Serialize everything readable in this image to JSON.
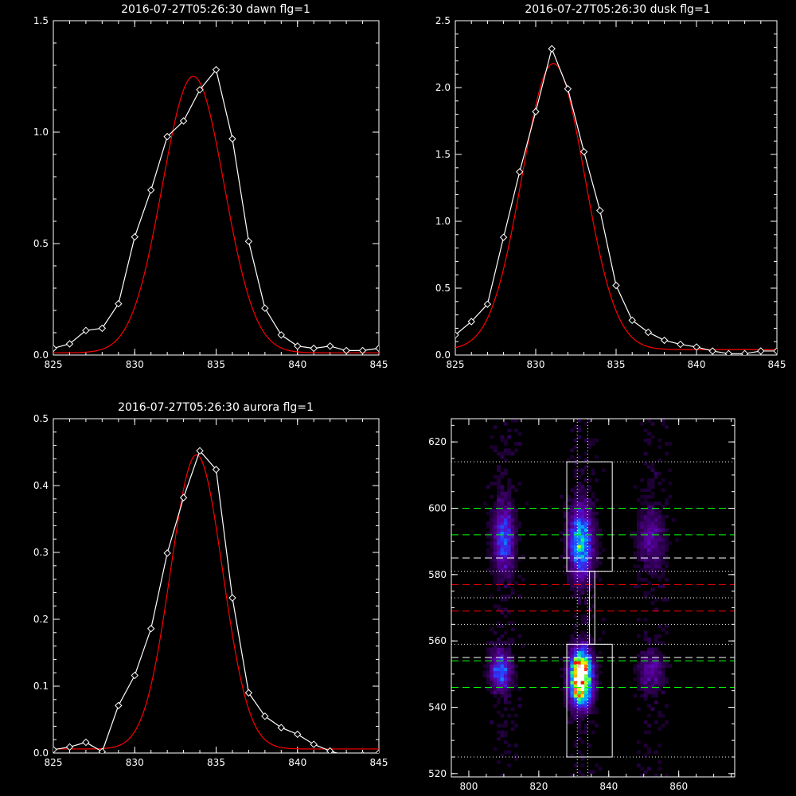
{
  "chart_data": [
    {
      "type": "line",
      "title": "2016-07-27T05:26:30 dawn flg=1",
      "xlim": [
        825,
        845
      ],
      "ylim": [
        0,
        1.5
      ],
      "xticks": [
        825,
        830,
        835,
        840,
        845
      ],
      "yticks": [
        0.0,
        0.5,
        1.0,
        1.5
      ],
      "ytick_labels": [
        "0.0",
        "0.5",
        "1.0",
        "1.5"
      ],
      "series": [
        {
          "color": "#ffffff",
          "marker": "diamond",
          "x": [
            825,
            826,
            827,
            828,
            829,
            830,
            831,
            832,
            833,
            834,
            835,
            836,
            837,
            838,
            839,
            840,
            841,
            842,
            843,
            844,
            845
          ],
          "y": [
            0.03,
            0.05,
            0.11,
            0.12,
            0.23,
            0.53,
            0.74,
            0.98,
            1.05,
            1.19,
            1.28,
            0.97,
            0.51,
            0.21,
            0.09,
            0.04,
            0.03,
            0.04,
            0.02,
            0.02,
            0.03
          ]
        },
        {
          "color": "#ff0000",
          "kind": "gaussian",
          "center": 833.6,
          "sigma": 1.9,
          "amp": 1.24,
          "base": 0.01
        }
      ]
    },
    {
      "type": "line",
      "title": "2016-07-27T05:26:30 dusk flg=1",
      "xlim": [
        825,
        845
      ],
      "ylim": [
        0,
        2.5
      ],
      "xticks": [
        825,
        830,
        835,
        840,
        845
      ],
      "yticks": [
        0.0,
        0.5,
        1.0,
        1.5,
        2.0,
        2.5
      ],
      "ytick_labels": [
        "0.0",
        "0.5",
        "1.0",
        "1.5",
        "2.0",
        "2.5"
      ],
      "series": [
        {
          "color": "#ffffff",
          "marker": "diamond",
          "x": [
            825,
            826,
            827,
            828,
            829,
            830,
            831,
            832,
            833,
            834,
            835,
            836,
            837,
            838,
            839,
            840,
            841,
            842,
            843,
            844,
            845
          ],
          "y": [
            0.15,
            0.25,
            0.38,
            0.88,
            1.37,
            1.82,
            2.29,
            1.99,
            1.52,
            1.08,
            0.52,
            0.26,
            0.17,
            0.11,
            0.08,
            0.06,
            0.03,
            0.01,
            0.01,
            0.03,
            0.03
          ]
        },
        {
          "color": "#ff0000",
          "kind": "gaussian",
          "center": 831.1,
          "sigma": 1.95,
          "amp": 2.14,
          "base": 0.04
        }
      ]
    },
    {
      "type": "line",
      "title": "2016-07-27T05:26:30 aurora flg=1",
      "xlim": [
        825,
        845
      ],
      "ylim": [
        0,
        0.5
      ],
      "xticks": [
        825,
        830,
        835,
        840,
        845
      ],
      "yticks": [
        0.0,
        0.1,
        0.2,
        0.3,
        0.4,
        0.5
      ],
      "ytick_labels": [
        "0.0",
        "0.1",
        "0.2",
        "0.3",
        "0.4",
        "0.5"
      ],
      "series": [
        {
          "color": "#ffffff",
          "marker": "diamond",
          "x": [
            825,
            826,
            827,
            828,
            829,
            830,
            831,
            832,
            833,
            834,
            835,
            836,
            837,
            838,
            839,
            840,
            841,
            842,
            843,
            844,
            845
          ],
          "y": [
            0.005,
            0.009,
            0.016,
            0.002,
            0.071,
            0.116,
            0.186,
            0.299,
            0.382,
            0.452,
            0.424,
            0.232,
            0.09,
            0.055,
            0.038,
            0.028,
            0.013,
            0.003,
            -0.004,
            -0.003,
            0.0
          ]
        },
        {
          "color": "#ff0000",
          "kind": "gaussian",
          "center": 833.8,
          "sigma": 1.6,
          "amp": 0.44,
          "base": 0.006
        }
      ]
    },
    {
      "type": "heatmap",
      "xlim": [
        795,
        876
      ],
      "ylim": [
        519,
        627
      ],
      "xticks": [
        800,
        820,
        840,
        860
      ],
      "yticks": [
        520,
        540,
        560,
        580,
        600,
        620
      ],
      "blobs": [
        {
          "x": 810,
          "y": 591,
          "sx": 2.0,
          "sy": 7.0,
          "a": 0.38
        },
        {
          "x": 809,
          "y": 551,
          "sx": 2.0,
          "sy": 4.0,
          "a": 0.42
        },
        {
          "x": 832,
          "y": 590,
          "sx": 2.2,
          "sy": 7.0,
          "a": 0.58
        },
        {
          "x": 832,
          "y": 551,
          "sx": 2.0,
          "sy": 4.5,
          "a": 1.0
        },
        {
          "x": 832,
          "y": 545,
          "sx": 2.0,
          "sy": 4.0,
          "a": 0.55
        },
        {
          "x": 852,
          "y": 591,
          "sx": 2.5,
          "sy": 6.0,
          "a": 0.2
        },
        {
          "x": 852,
          "y": 551,
          "sx": 2.5,
          "sy": 4.0,
          "a": 0.2
        }
      ],
      "boxes": [
        {
          "x": [
            828,
            841
          ],
          "y": [
            581,
            614
          ]
        },
        {
          "x": [
            828,
            841
          ],
          "y": [
            525,
            559
          ]
        }
      ],
      "connector": {
        "x": [
          834.5,
          836
        ],
        "y": [
          559,
          581
        ]
      },
      "hlines_dotted_white": [
        614,
        581,
        559,
        525,
        573,
        565
      ],
      "vlines_dotted_white": [
        831,
        834
      ],
      "hlines_green": [
        600,
        592,
        554,
        546
      ],
      "hlines_white_dashed": [
        585,
        555
      ],
      "hlines_red": [
        577,
        569
      ]
    }
  ]
}
